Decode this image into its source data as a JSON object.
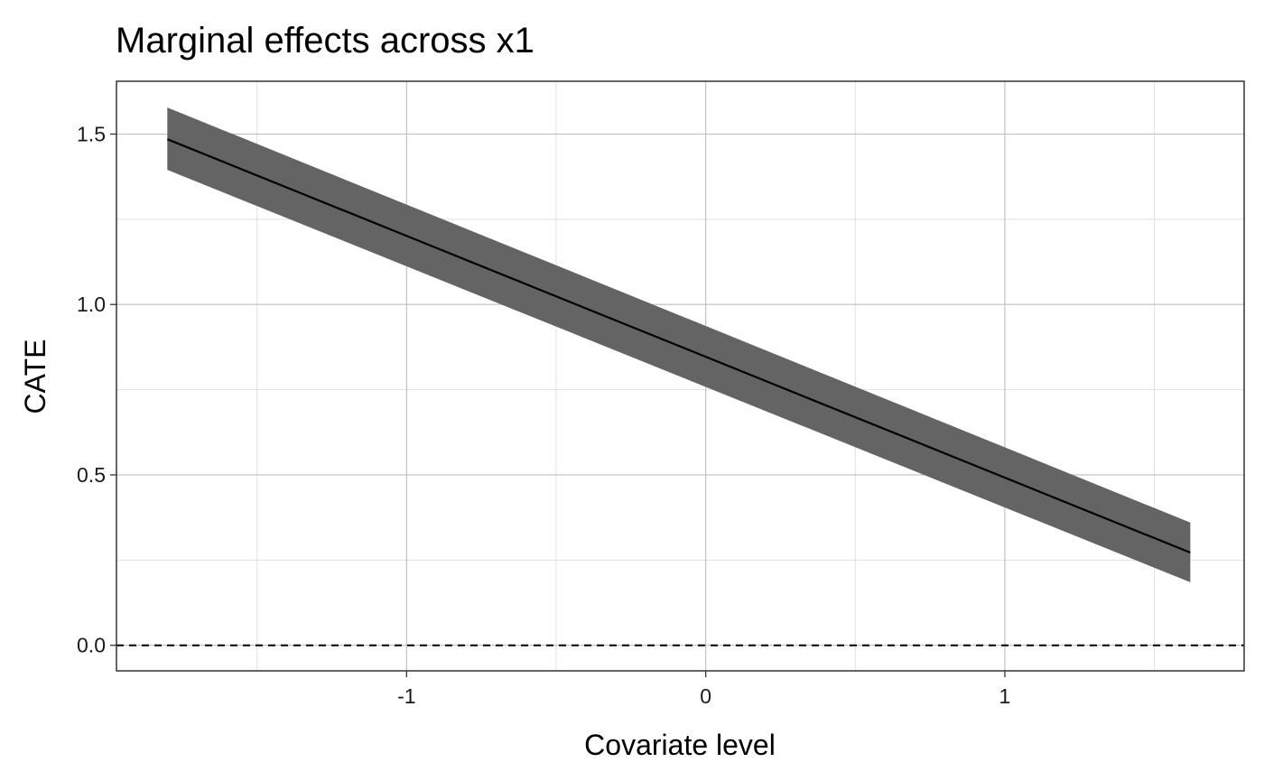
{
  "chart_data": {
    "type": "line",
    "title": "Marginal effects across x1",
    "xlabel": "Covariate level",
    "ylabel": "CATE",
    "xlim": [
      -1.97,
      1.8
    ],
    "ylim": [
      -0.075,
      1.655
    ],
    "x_ticks": [
      {
        "value": -1,
        "label": "-1"
      },
      {
        "value": 0,
        "label": "0"
      },
      {
        "value": 1,
        "label": "1"
      }
    ],
    "x_minor_ticks": [
      -1.5,
      -0.5,
      0.5,
      1.5
    ],
    "y_ticks": [
      {
        "value": 0.0,
        "label": "0.0"
      },
      {
        "value": 0.5,
        "label": "0.5"
      },
      {
        "value": 1.0,
        "label": "1.0"
      },
      {
        "value": 1.5,
        "label": "1.5"
      }
    ],
    "y_minor_ticks": [
      0.25,
      0.75,
      1.25
    ],
    "grid": true,
    "reference_line": {
      "y": 0,
      "style": "dashed"
    },
    "series": [
      {
        "x": [
          -1.8,
          1.62
        ],
        "y": [
          1.485,
          0.272
        ],
        "lower": [
          1.395,
          0.185
        ],
        "upper": [
          1.578,
          0.36
        ]
      }
    ],
    "colors": {
      "band": "#646464",
      "line": "#000000",
      "grid_major": "#bdbdbd",
      "grid_minor": "#e0e0e0",
      "panel_border": "#333333"
    }
  }
}
